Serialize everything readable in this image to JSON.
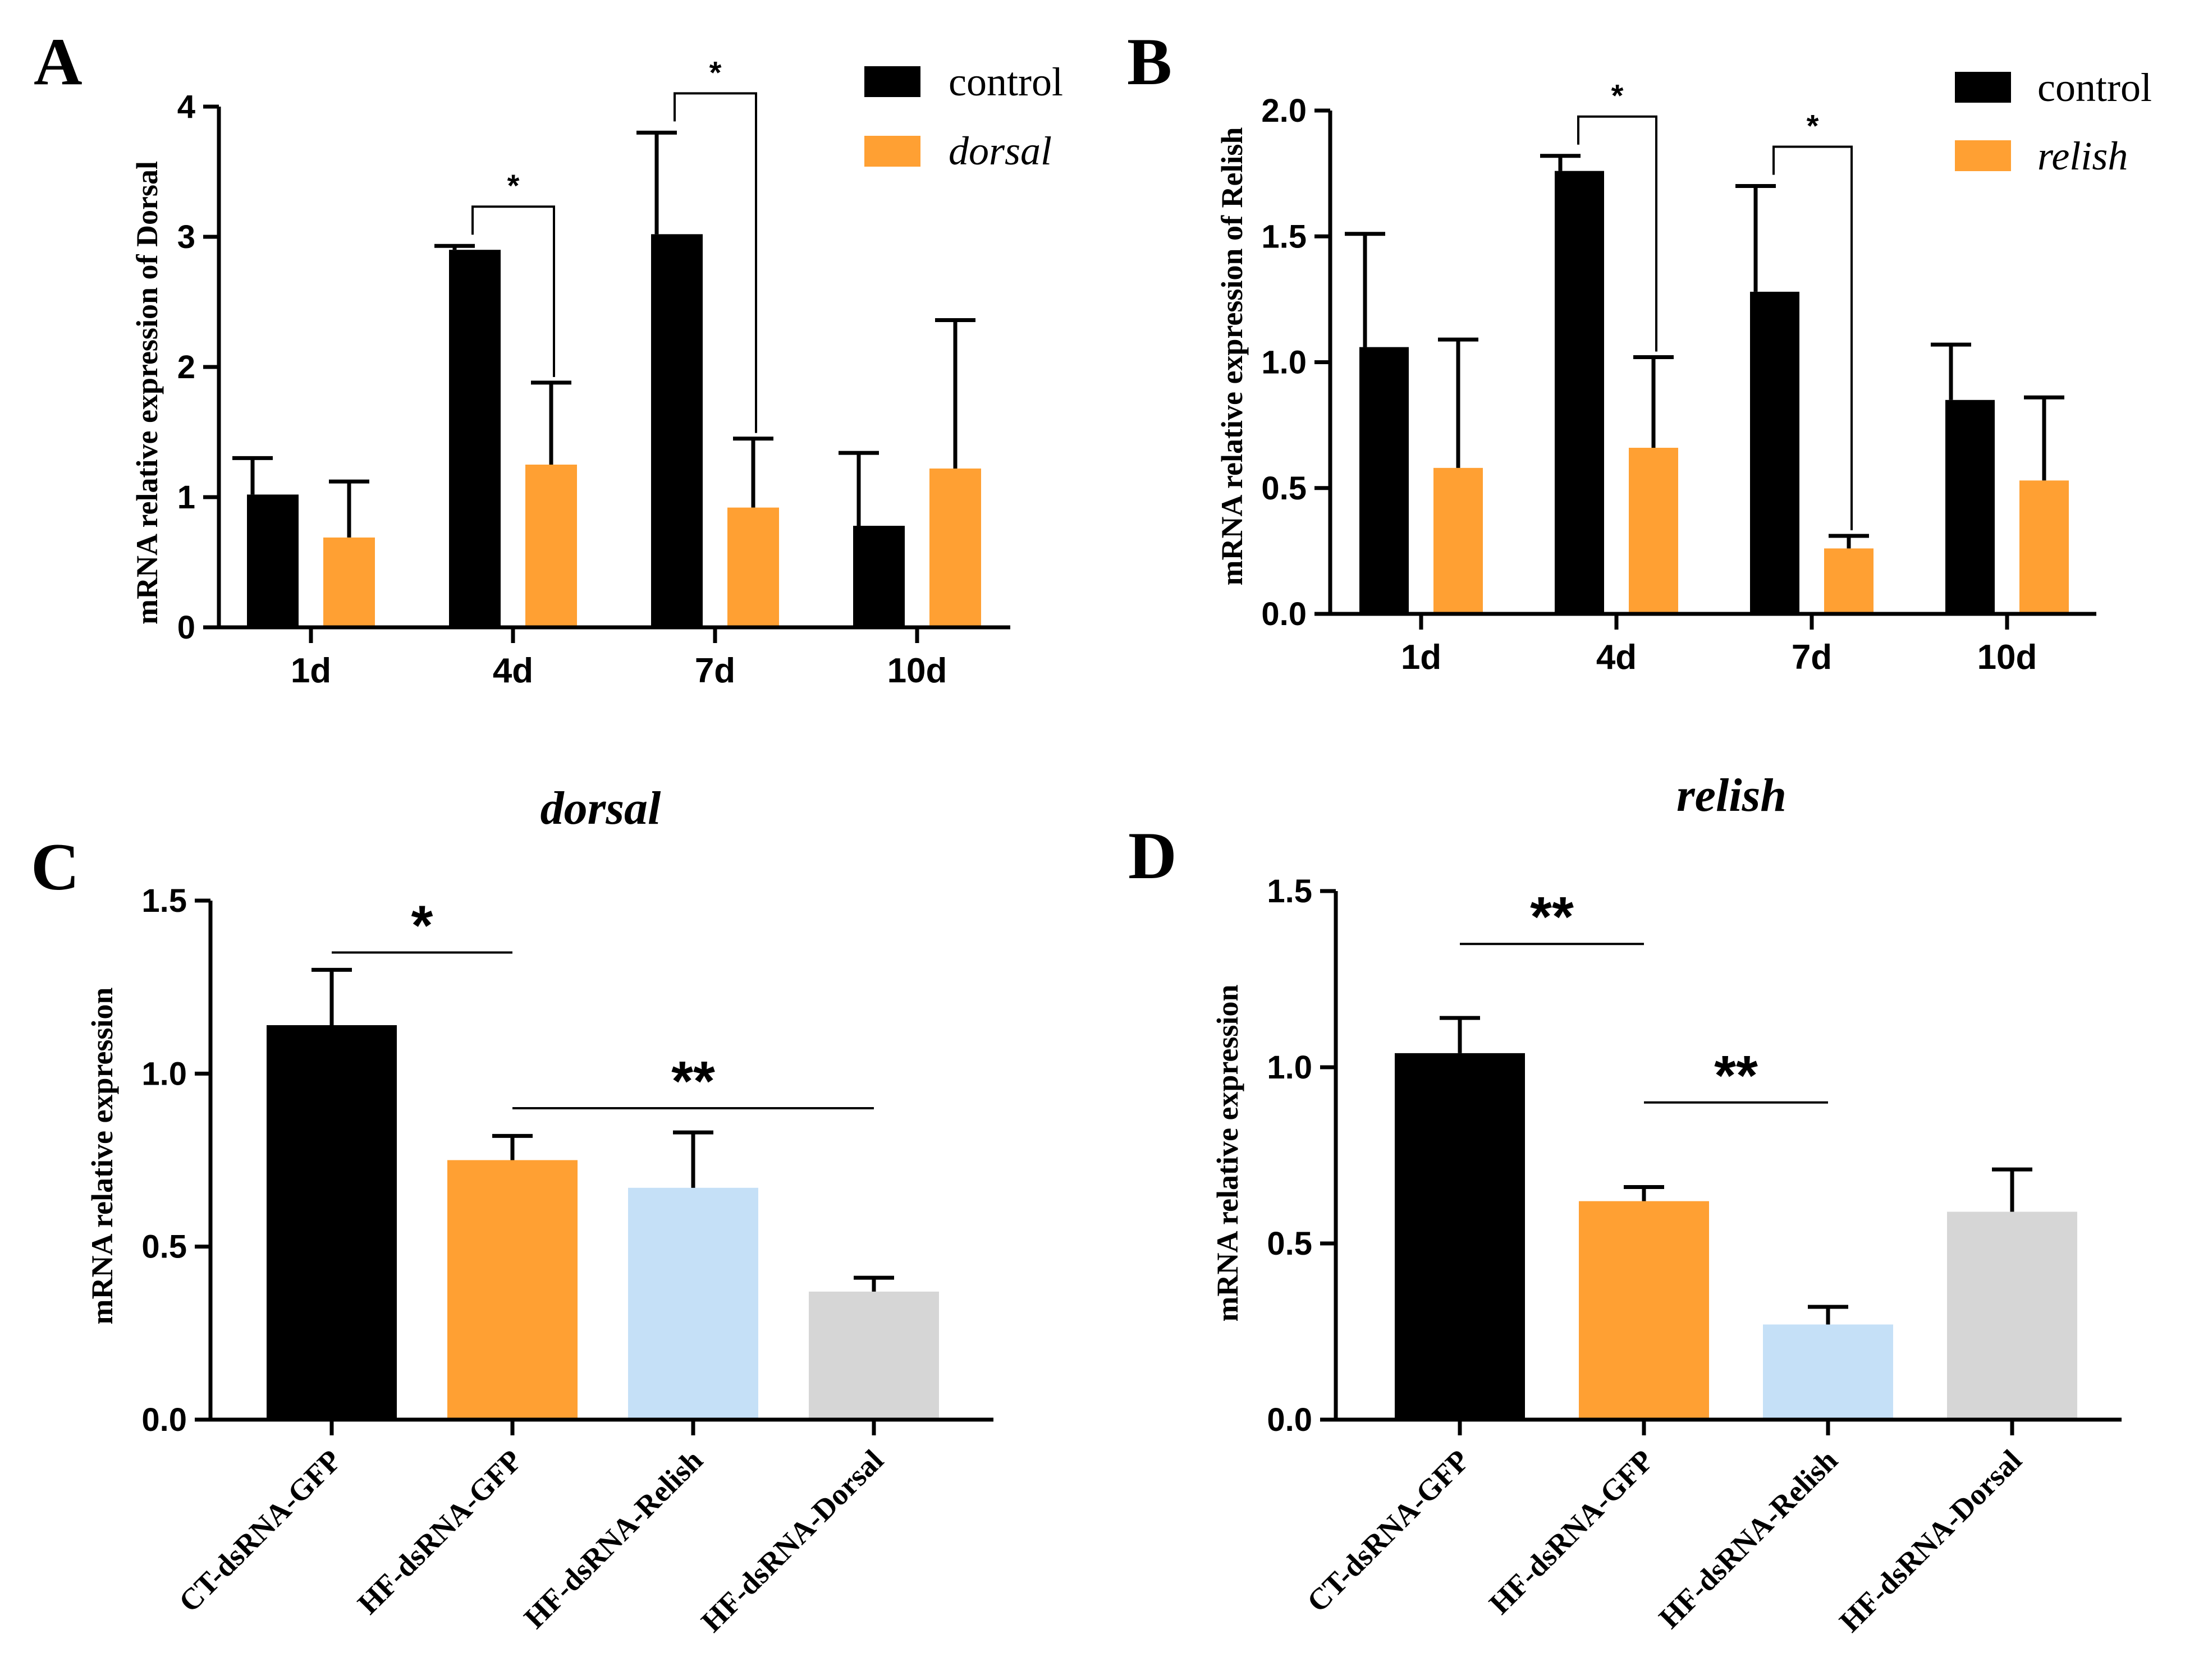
{
  "chart_data": [
    {
      "panel_label": "A",
      "type": "bar",
      "title": "",
      "ylabel": "mRNA relative expression of Dorsal",
      "xlabel": "",
      "categories": [
        "1d",
        "4d",
        "7d",
        "10d"
      ],
      "ylim": [
        0,
        4
      ],
      "yticks": [
        "0",
        "1",
        "2",
        "3",
        "4"
      ],
      "ytick_values": [
        0,
        1,
        2,
        3,
        4
      ],
      "series": [
        {
          "name": "control",
          "color": "#000000",
          "values": [
            1.02,
            2.9,
            3.02,
            0.78
          ],
          "errors": [
            0.28,
            0.03,
            0.78,
            0.56
          ]
        },
        {
          "name": "dorsal",
          "italic": true,
          "color": "#FFA033",
          "values": [
            0.69,
            1.25,
            0.92,
            1.22
          ],
          "errors": [
            0.43,
            0.63,
            0.53,
            1.14
          ]
        }
      ],
      "significance": [
        {
          "category_index": 1,
          "label": "*"
        },
        {
          "category_index": 2,
          "label": "*"
        }
      ],
      "legend_position": "top-right"
    },
    {
      "panel_label": "B",
      "type": "bar",
      "title": "",
      "ylabel": "mRNA relative expression of Relish",
      "xlabel": "",
      "categories": [
        "1d",
        "4d",
        "7d",
        "10d"
      ],
      "ylim": [
        0,
        2
      ],
      "yticks": [
        "0.0",
        "0.5",
        "1.0",
        "1.5",
        "2.0"
      ],
      "ytick_values": [
        0,
        0.5,
        1.0,
        1.5,
        2.0
      ],
      "series": [
        {
          "name": "control",
          "color": "#000000",
          "values": [
            1.06,
            1.76,
            1.28,
            0.85
          ],
          "errors": [
            0.45,
            0.06,
            0.42,
            0.22
          ]
        },
        {
          "name": "relish",
          "italic": true,
          "color": "#FFA033",
          "values": [
            0.58,
            0.66,
            0.26,
            0.53
          ],
          "errors": [
            0.51,
            0.36,
            0.05,
            0.33
          ]
        }
      ],
      "significance": [
        {
          "category_index": 1,
          "label": "*"
        },
        {
          "category_index": 2,
          "label": "*"
        }
      ],
      "legend_position": "top-right"
    },
    {
      "panel_label": "C",
      "type": "bar",
      "title": "dorsal",
      "ylabel": "mRNA relative expression",
      "xlabel": "",
      "categories": [
        "CT-dsRNA-GFP",
        "HF-dsRNA-GFP",
        "HF-dsRNA-Relish",
        "HF-dsRNA-Dorsal"
      ],
      "ylim": [
        0,
        1.5
      ],
      "yticks": [
        "0.0",
        "0.5",
        "1.0",
        "1.5"
      ],
      "ytick_values": [
        0,
        0.5,
        1.0,
        1.5
      ],
      "values": [
        1.14,
        0.75,
        0.67,
        0.37
      ],
      "errors": [
        0.16,
        0.07,
        0.16,
        0.04
      ],
      "colors": [
        "#000000",
        "#FFA033",
        "#C5E0F7",
        "#D6D6D6"
      ],
      "significance": [
        {
          "from": 0,
          "to": 1,
          "label": "*"
        },
        {
          "from": 1,
          "to": 3,
          "label": "**"
        }
      ]
    },
    {
      "panel_label": "D",
      "type": "bar",
      "title": "relish",
      "ylabel": "mRNA relative expression",
      "xlabel": "",
      "categories": [
        "CT-dsRNA-GFP",
        "HF-dsRNA-GFP",
        "HF-dsRNA-Relish",
        "HF-dsRNA-Dorsal"
      ],
      "ylim": [
        0,
        1.5
      ],
      "yticks": [
        "0.0",
        "0.5",
        "1.0",
        "1.5"
      ],
      "ytick_values": [
        0,
        0.5,
        1.0,
        1.5
      ],
      "values": [
        1.04,
        0.62,
        0.27,
        0.59
      ],
      "errors": [
        0.1,
        0.04,
        0.05,
        0.12
      ],
      "colors": [
        "#000000",
        "#FFA033",
        "#C5E0F7",
        "#D6D6D6"
      ],
      "significance": [
        {
          "from": 0,
          "to": 1,
          "label": "**"
        },
        {
          "from": 1,
          "to": 2,
          "label": "**"
        }
      ]
    }
  ]
}
